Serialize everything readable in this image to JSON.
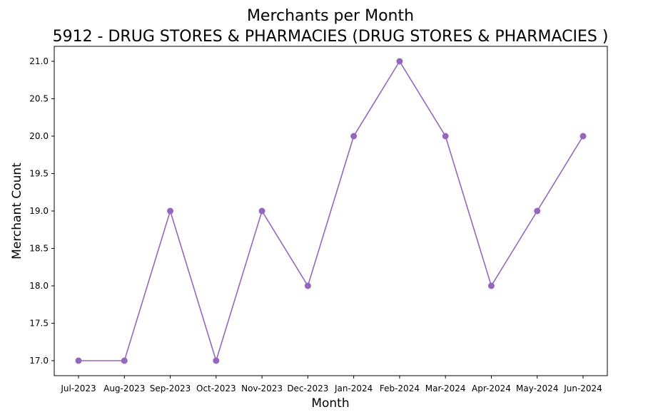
{
  "chart_data": {
    "type": "line",
    "title": "Merchants per Month",
    "subtitle": "5912 - DRUG STORES & PHARMACIES (DRUG STORES & PHARMACIES )",
    "xlabel": "Month",
    "ylabel": "Merchant Count",
    "categories": [
      "Jul-2023",
      "Aug-2023",
      "Sep-2023",
      "Oct-2023",
      "Nov-2023",
      "Dec-2023",
      "Jan-2024",
      "Feb-2024",
      "Mar-2024",
      "Apr-2024",
      "May-2024",
      "Jun-2024"
    ],
    "values": [
      17,
      17,
      19,
      17,
      19,
      18,
      20,
      21,
      20,
      18,
      19,
      20
    ],
    "ylim": [
      16.8,
      21.2
    ],
    "yticks": [
      "17.0",
      "17.5",
      "18.0",
      "18.5",
      "19.0",
      "19.5",
      "20.0",
      "20.5",
      "21.0"
    ],
    "grid": false,
    "legend": "none",
    "marker": "circle",
    "line_color": "#9467bd"
  }
}
